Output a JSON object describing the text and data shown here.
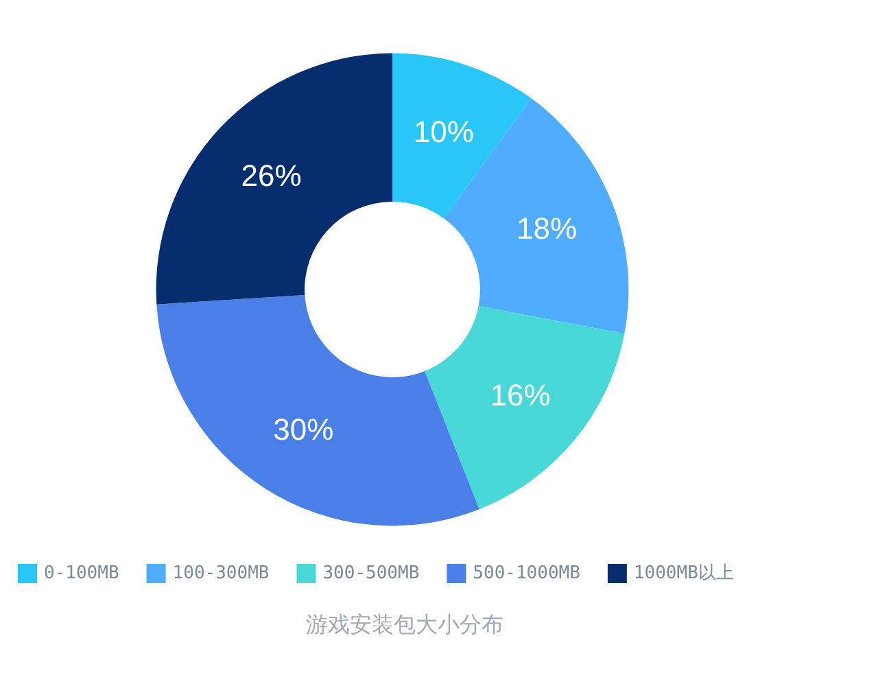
{
  "chart_data": {
    "type": "donut",
    "title": "游戏安装包大小分布",
    "categories": [
      "0-100MB",
      "100-300MB",
      "300-500MB",
      "500-1000MB",
      "1000MB以上"
    ],
    "values": [
      10,
      18,
      16,
      30,
      26
    ],
    "colors": [
      "#29c7f7",
      "#4facfe",
      "#48d8d8",
      "#4a7fe8",
      "#062e6f"
    ],
    "value_labels": [
      "10%",
      "18%",
      "16%",
      "30%",
      "26%"
    ],
    "legend": "bottom"
  }
}
